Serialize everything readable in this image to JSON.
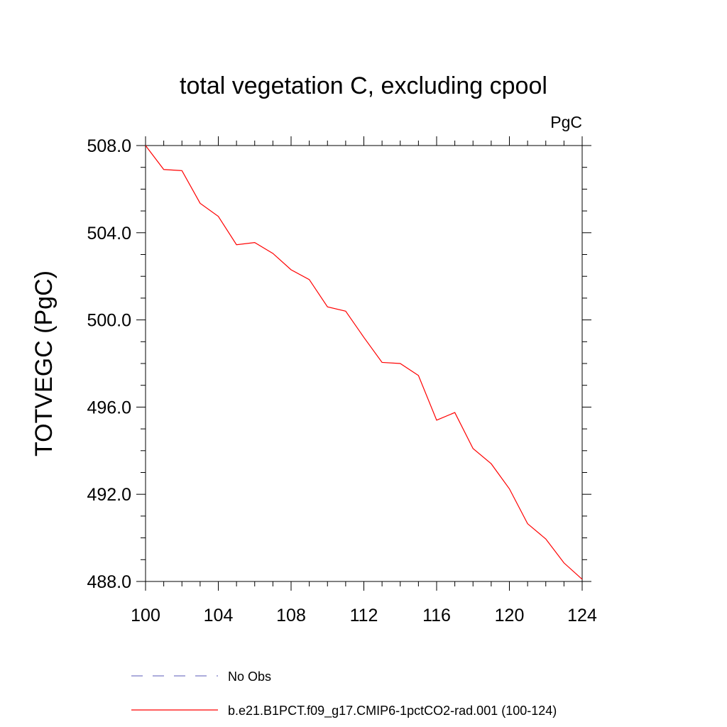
{
  "chart_data": {
    "type": "line",
    "title": "total vegetation C, excluding cpool",
    "units_label": "PgC",
    "xlabel": "",
    "ylabel": "TOTVEGC  (PgC)",
    "xlim": [
      100,
      124
    ],
    "ylim": [
      488.0,
      508.0
    ],
    "x_ticks": [
      100,
      104,
      108,
      112,
      116,
      120,
      124
    ],
    "x_tick_labels": [
      "100",
      "104",
      "108",
      "112",
      "116",
      "120",
      "124"
    ],
    "y_ticks": [
      488.0,
      492.0,
      496.0,
      500.0,
      504.0,
      508.0
    ],
    "y_tick_labels": [
      "488.0",
      "492.0",
      "496.0",
      "500.0",
      "504.0",
      "508.0"
    ],
    "grid": false,
    "legend_position": "bottom",
    "series": [
      {
        "name": "No Obs",
        "color": "#7b7bc8",
        "dash": "dashed",
        "x": [],
        "values": []
      },
      {
        "name": "b.e21.B1PCT.f09_g17.CMIP6-1pctCO2-rad.001 (100-124)",
        "color": "#ff0000",
        "dash": "solid",
        "x": [
          100,
          101,
          102,
          103,
          104,
          105,
          106,
          107,
          108,
          109,
          110,
          111,
          112,
          113,
          114,
          115,
          116,
          117,
          118,
          119,
          120,
          121,
          122,
          123,
          124
        ],
        "values": [
          508.0,
          506.9,
          506.85,
          505.35,
          504.75,
          503.45,
          503.55,
          503.05,
          502.3,
          501.85,
          500.6,
          500.4,
          499.2,
          498.05,
          498.0,
          497.45,
          495.4,
          495.75,
          494.1,
          493.4,
          492.25,
          490.65,
          489.95,
          488.85,
          488.1
        ]
      }
    ]
  }
}
